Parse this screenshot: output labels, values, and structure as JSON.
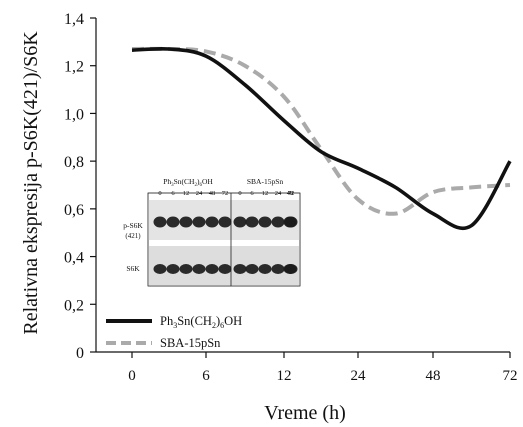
{
  "chart_data": {
    "type": "line",
    "title": "",
    "xlabel": "Vreme (h)",
    "ylabel": "Relativna ekspresija p-S6K(421)/S6K",
    "categories": [
      "0",
      "6",
      "12",
      "24",
      "48",
      "72"
    ],
    "yticks": [
      "0",
      "0,2",
      "0,4",
      "0,6",
      "0,8",
      "1,0",
      "1,2",
      "1,4"
    ],
    "ylim": [
      0,
      1.4
    ],
    "legend_position": "bottom-left",
    "grid": false,
    "series": [
      {
        "name": "Ph3Sn(CH2)6OH",
        "name_parts": {
          "a": "Ph",
          "b": "3",
          "c": "Sn(CH",
          "d": "2",
          "e": ")",
          "f": "6",
          "g": "OH"
        },
        "color": "#111111",
        "style": "solid",
        "x": [
          0,
          0.5,
          1,
          1.5,
          2,
          2.5,
          3,
          3.5,
          4,
          4.5,
          5
        ],
        "y": [
          1.265,
          1.27,
          1.24,
          1.12,
          0.97,
          0.84,
          0.77,
          0.69,
          0.58,
          0.53,
          0.8
        ]
      },
      {
        "name": "SBA-15pSn",
        "color": "#aaaaaa",
        "style": "dashed",
        "x": [
          0,
          0.5,
          1,
          1.5,
          2,
          2.5,
          3,
          3.5,
          4,
          4.5,
          5
        ],
        "y": [
          1.27,
          1.27,
          1.26,
          1.2,
          1.07,
          0.85,
          0.64,
          0.58,
          0.67,
          0.69,
          0.7
        ]
      }
    ]
  },
  "inset": {
    "group1_label": {
      "a": "Ph",
      "b": "3",
      "c": "Sn(CH",
      "d": "2",
      "e": ")",
      "f": "6",
      "g": "OH"
    },
    "group2_label": "SBA-15pSn",
    "times": [
      "0",
      "6",
      "12",
      "24",
      "48",
      "72"
    ],
    "row1_label_line1": "p-S6K",
    "row1_label_line2": "(421)",
    "row2_label": "S6K"
  }
}
